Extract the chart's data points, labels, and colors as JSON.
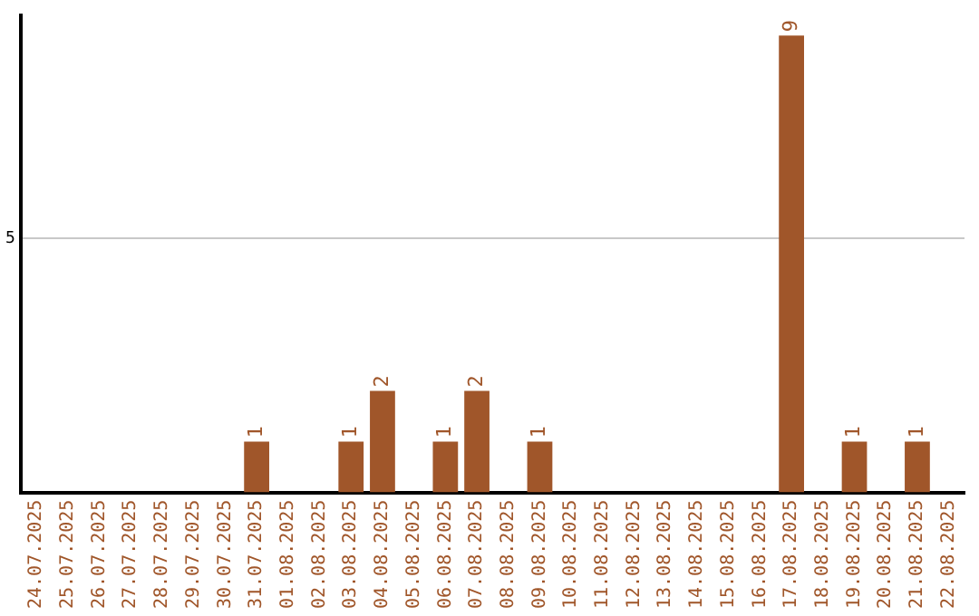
{
  "chart_data": {
    "type": "bar",
    "categories": [
      "24.07.2025",
      "25.07.2025",
      "26.07.2025",
      "27.07.2025",
      "28.07.2025",
      "29.07.2025",
      "30.07.2025",
      "31.07.2025",
      "01.08.2025",
      "02.08.2025",
      "03.08.2025",
      "04.08.2025",
      "05.08.2025",
      "06.08.2025",
      "07.08.2025",
      "08.08.2025",
      "09.08.2025",
      "10.08.2025",
      "11.08.2025",
      "12.08.2025",
      "13.08.2025",
      "14.08.2025",
      "15.08.2025",
      "16.08.2025",
      "17.08.2025",
      "18.08.2025",
      "19.08.2025",
      "20.08.2025",
      "21.08.2025",
      "22.08.2025"
    ],
    "values": [
      0,
      0,
      0,
      0,
      0,
      0,
      0,
      1,
      0,
      0,
      1,
      2,
      0,
      1,
      2,
      0,
      1,
      0,
      0,
      0,
      0,
      0,
      0,
      0,
      9,
      0,
      1,
      0,
      1,
      0
    ],
    "value_labels": [
      null,
      null,
      null,
      null,
      null,
      null,
      null,
      "1",
      null,
      null,
      "1",
      "2",
      null,
      "1",
      "2",
      null,
      "1",
      null,
      null,
      null,
      null,
      null,
      null,
      null,
      "9",
      null,
      "1",
      null,
      "1",
      null
    ],
    "color": "#a0562a",
    "ylim": [
      0,
      9.4
    ],
    "yticks": [
      5
    ],
    "grid": "y",
    "legend": false
  }
}
